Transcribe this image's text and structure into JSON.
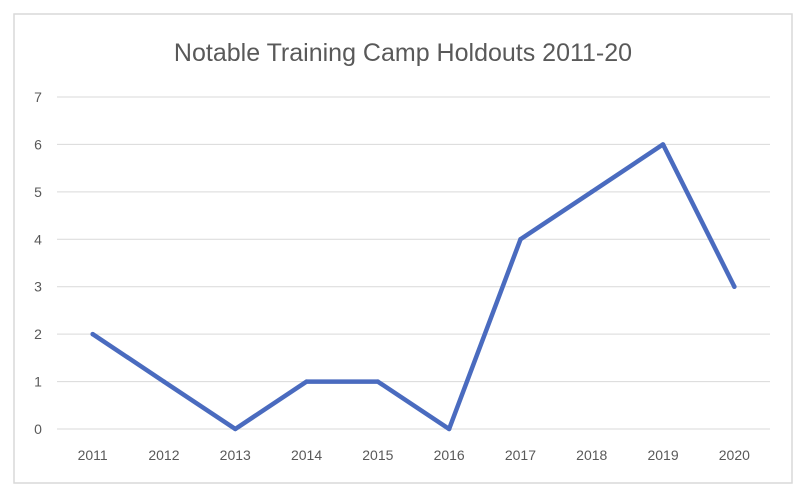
{
  "chart_data": {
    "type": "line",
    "title": "Notable Training Camp Holdouts 2011-20",
    "xlabel": "",
    "ylabel": "",
    "categories": [
      "2011",
      "2012",
      "2013",
      "2014",
      "2015",
      "2016",
      "2017",
      "2018",
      "2019",
      "2020"
    ],
    "series": [
      {
        "values": [
          2,
          1,
          0,
          1,
          1,
          0,
          4,
          5,
          6,
          3
        ]
      }
    ],
    "ylim": [
      0,
      7
    ],
    "yticks": [
      0,
      1,
      2,
      3,
      4,
      5,
      6,
      7
    ],
    "grid": true,
    "legend": "none"
  },
  "colors": {
    "line": "#4a6bbf",
    "grid": "#d9d9d9",
    "text": "#595959",
    "border": "#d9d9d9"
  }
}
